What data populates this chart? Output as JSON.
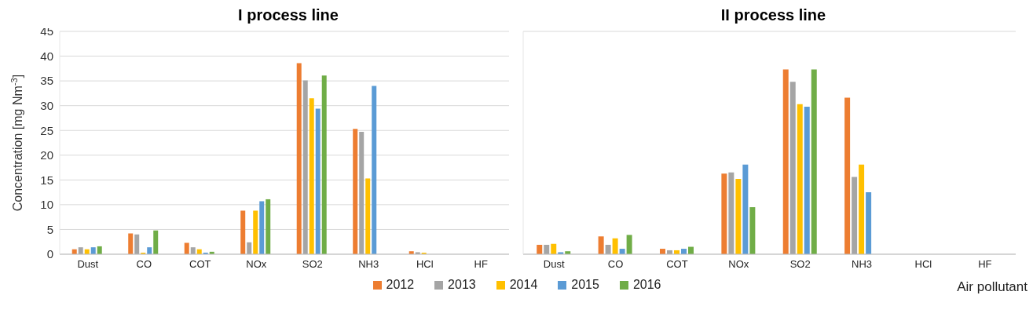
{
  "chart_data": [
    {
      "type": "bar",
      "title": "I process line",
      "ylabel": "Concentration  [mg Nm$^{-3}$]",
      "categories": [
        "Dust",
        "CO",
        "COT",
        "NOx",
        "SO2",
        "NH3",
        "HCl",
        "HF"
      ],
      "ylim": [
        0,
        45
      ],
      "yticks": [
        0,
        5,
        10,
        15,
        20,
        25,
        30,
        35,
        40,
        45
      ],
      "grid": "y",
      "legend": "bottom",
      "series": [
        {
          "name": "2012",
          "color": "#ed7d31",
          "values": [
            1.0,
            4.2,
            2.3,
            8.8,
            38.6,
            25.3,
            0.6,
            null
          ]
        },
        {
          "name": "2013",
          "color": "#a5a5a5",
          "values": [
            1.4,
            4.0,
            1.4,
            2.4,
            35.1,
            24.7,
            0.4,
            null
          ]
        },
        {
          "name": "2014",
          "color": "#ffc000",
          "values": [
            1.0,
            0.3,
            1.0,
            8.8,
            31.5,
            15.3,
            0.3,
            null
          ]
        },
        {
          "name": "2015",
          "color": "#5b9bd5",
          "values": [
            1.4,
            1.4,
            0.3,
            10.7,
            29.4,
            34.0,
            null,
            null
          ]
        },
        {
          "name": "2016",
          "color": "#70ad47",
          "values": [
            1.6,
            4.8,
            0.5,
            11.1,
            36.1,
            null,
            null,
            null
          ]
        }
      ]
    },
    {
      "type": "bar",
      "title": "II process line",
      "xlabel": "Air pollutant",
      "categories": [
        "Dust",
        "CO",
        "COT",
        "NOx",
        "SO2",
        "NH3",
        "HCl",
        "HF"
      ],
      "ylim": [
        0,
        45
      ],
      "yticks": [
        0,
        5,
        10,
        15,
        20,
        25,
        30,
        35,
        40,
        45
      ],
      "grid": "y",
      "tick_labels": "x",
      "series": [
        {
          "color": "#ed7d31",
          "values": [
            1.9,
            3.6,
            1.1,
            16.3,
            37.3,
            31.6,
            null,
            null
          ]
        },
        {
          "color": "#a5a5a5",
          "values": [
            1.9,
            1.9,
            0.8,
            16.5,
            34.8,
            15.6,
            null,
            null
          ]
        },
        {
          "color": "#ffc000",
          "values": [
            2.1,
            3.2,
            0.8,
            15.2,
            30.3,
            18.1,
            null,
            null
          ]
        },
        {
          "color": "#5b9bd5",
          "values": [
            0.4,
            1.1,
            1.1,
            18.1,
            29.8,
            12.5,
            null,
            null
          ]
        },
        {
          "color": "#70ad47",
          "values": [
            0.6,
            3.9,
            1.5,
            9.5,
            37.3,
            null,
            null,
            null
          ]
        }
      ]
    }
  ]
}
